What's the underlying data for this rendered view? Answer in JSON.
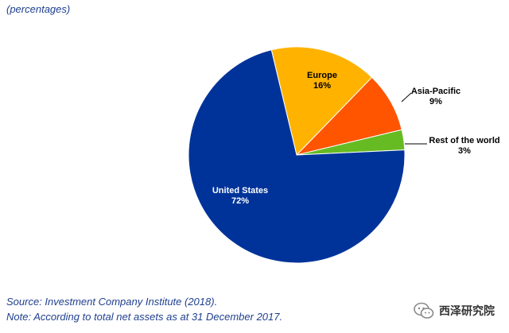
{
  "subtitle": "(percentages)",
  "colors": {
    "united_states": "#003399",
    "europe": "#FFB300",
    "asia_pacific": "#FF5500",
    "rest_of_world": "#66BB22",
    "text_accent": "#1f3f8f"
  },
  "chart_data": {
    "type": "pie",
    "slices": [
      {
        "label": "Europe",
        "value_label": "16%",
        "value": 16,
        "color": "#FFB300"
      },
      {
        "label": "Asia-Pacific",
        "value_label": "9%",
        "value": 9,
        "color": "#FF5500"
      },
      {
        "label": "Rest of the world",
        "value_label": "3%",
        "value": 3,
        "color": "#66BB22"
      },
      {
        "label": "United States",
        "value_label": "72%",
        "value": 72,
        "color": "#003399"
      }
    ]
  },
  "footer": {
    "source": "Source: Investment Company Institute (2018).",
    "note": "Note: According to total net assets as at 31 December 2017."
  },
  "watermark": {
    "text": "西泽研究院"
  }
}
